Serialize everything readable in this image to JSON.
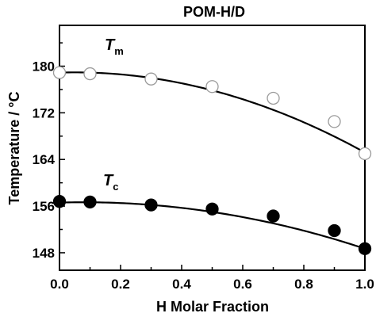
{
  "chart_data": {
    "type": "scatter",
    "title": "POM-H/D",
    "xlabel": "H Molar Fraction",
    "ylabel": "Temperature / °C",
    "xlim": [
      0.0,
      1.0
    ],
    "ylim": [
      145,
      187
    ],
    "x_ticks": [
      "0.0",
      "0.2",
      "0.4",
      "0.6",
      "0.8",
      "1.0"
    ],
    "y_ticks": [
      "148",
      "156",
      "164",
      "172",
      "180"
    ],
    "series": [
      {
        "name": "T",
        "subscript": "m",
        "marker": "open-circle",
        "x": [
          0.0,
          0.1,
          0.3,
          0.5,
          0.7,
          0.9,
          1.0
        ],
        "y": [
          178.9,
          178.7,
          177.8,
          176.5,
          174.5,
          170.5,
          165.0
        ]
      },
      {
        "name": "T",
        "subscript": "c",
        "marker": "filled-circle",
        "x": [
          0.0,
          0.1,
          0.3,
          0.5,
          0.7,
          0.9,
          1.0
        ],
        "y": [
          156.8,
          156.7,
          156.2,
          155.5,
          154.3,
          151.8,
          148.7
        ]
      }
    ],
    "fits": [
      {
        "series": "Tm",
        "a": 178.9,
        "b": 1.5,
        "c": -15.2
      },
      {
        "series": "Tc",
        "a": 156.6,
        "b": 1.5,
        "c": -9.4
      }
    ],
    "grid": false,
    "legend": "none",
    "colors": {
      "marker_fill": "#000000",
      "marker_open": "#ffffff",
      "line": "#000000"
    }
  }
}
